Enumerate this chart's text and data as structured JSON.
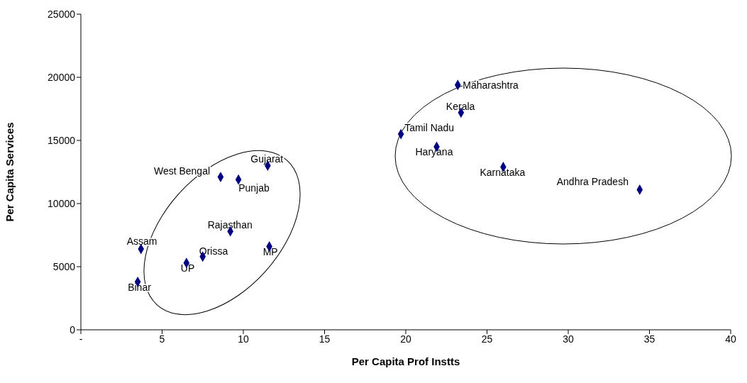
{
  "chart_data": {
    "type": "scatter",
    "xlabel": "Per Capita Prof Instts",
    "ylabel": "Per Capita Services",
    "x": [
      23.2,
      23.4,
      19.7,
      21.9,
      26.0,
      34.4,
      11.5,
      8.6,
      9.7,
      9.2,
      11.6,
      7.5,
      6.5,
      3.7,
      3.5
    ],
    "series": [
      {
        "color": "#000080",
        "values": [
          19400,
          17200,
          15500,
          14500,
          12900,
          11100,
          13000,
          12100,
          11900,
          7800,
          6600,
          5800,
          5300,
          6400,
          3800
        ]
      }
    ],
    "annotations": [
      {
        "text": "Maharashtra",
        "x": 23.2,
        "y": 19400
      },
      {
        "text": "Kerala",
        "x": 23.4,
        "y": 17200
      },
      {
        "text": "Tamil Nadu",
        "x": 19.7,
        "y": 15500
      },
      {
        "text": "Haryana",
        "x": 21.9,
        "y": 14500
      },
      {
        "text": "Karnataka",
        "x": 26.0,
        "y": 12900
      },
      {
        "text": "Andhra Pradesh",
        "x": 34.4,
        "y": 11100
      },
      {
        "text": "Gujarat",
        "x": 11.5,
        "y": 13000
      },
      {
        "text": "West Bengal",
        "x": 8.6,
        "y": 12100
      },
      {
        "text": "Punjab",
        "x": 9.7,
        "y": 11900
      },
      {
        "text": "Rajasthan",
        "x": 9.2,
        "y": 7800
      },
      {
        "text": "MP",
        "x": 11.6,
        "y": 6600
      },
      {
        "text": "Orissa",
        "x": 7.5,
        "y": 5800
      },
      {
        "text": "UP",
        "x": 6.5,
        "y": 5300
      },
      {
        "text": "Assam",
        "x": 3.7,
        "y": 6400
      },
      {
        "text": "Bihar",
        "x": 3.5,
        "y": 3800
      }
    ],
    "xlim": [
      0,
      40
    ],
    "xticks": [
      {
        "value": 0,
        "label": "-"
      },
      5,
      10,
      15,
      20,
      25,
      30,
      35,
      40
    ],
    "ylim": [
      0,
      25000
    ],
    "yticks": [
      0,
      5000,
      10000,
      15000,
      20000,
      25000
    ],
    "grid": false,
    "legend": false,
    "marker": "diamond"
  }
}
